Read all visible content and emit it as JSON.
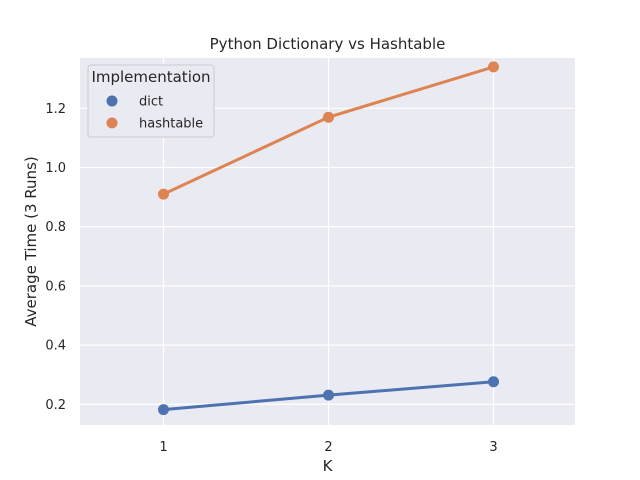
{
  "chart_data": {
    "type": "line",
    "title": "Python Dictionary vs Hashtable",
    "xlabel": "K",
    "ylabel": "Average Time (3 Runs)",
    "categories": [
      "1",
      "2",
      "3"
    ],
    "yticks": [
      "0.2",
      "0.4",
      "0.6",
      "0.8",
      "1.0",
      "1.2"
    ],
    "ylim": [
      0.13,
      1.37
    ],
    "grid": true,
    "legend": {
      "title": "Implementation",
      "placement": "top-left"
    },
    "series": [
      {
        "name": "dict",
        "values": [
          0.182,
          0.231,
          0.276
        ],
        "color": "#4c72b0"
      },
      {
        "name": "hashtable",
        "values": [
          0.91,
          1.17,
          1.34
        ],
        "color": "#dd8452"
      }
    ]
  }
}
